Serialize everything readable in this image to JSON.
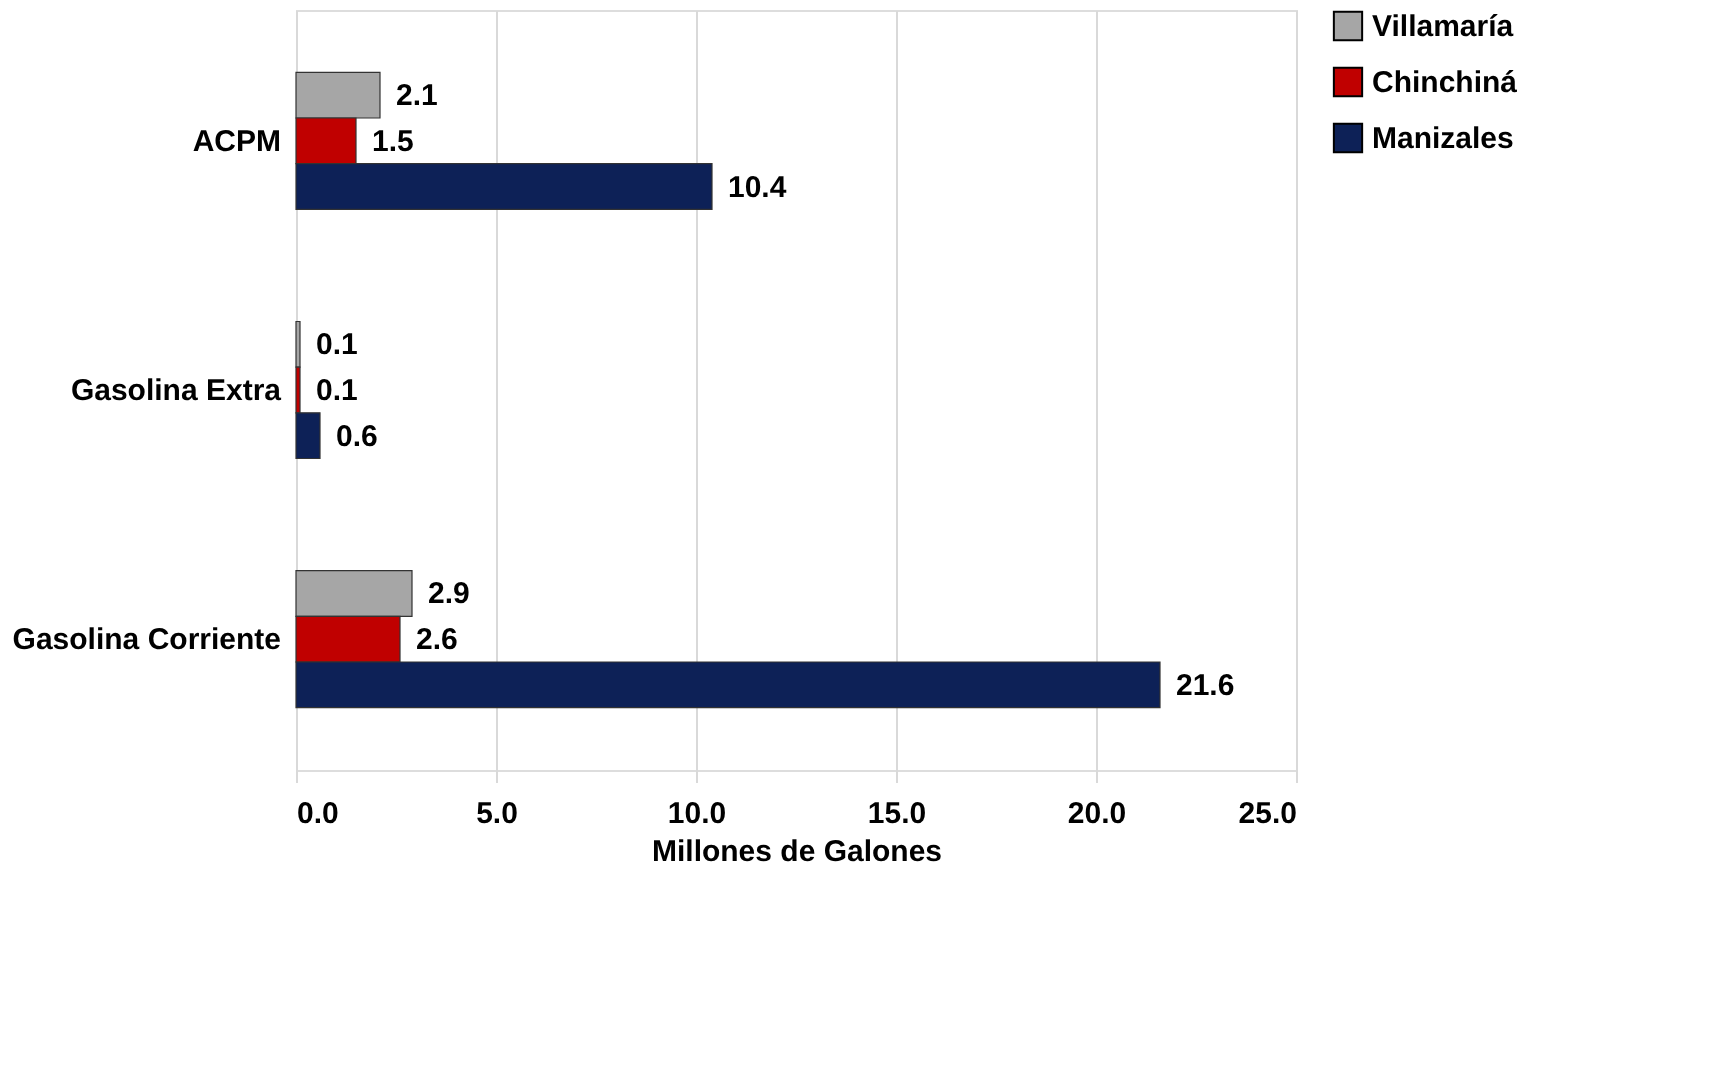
{
  "chart_data": {
    "type": "bar",
    "orientation": "horizontal",
    "xlabel": "Millones de Galones",
    "categories": [
      "ACPM",
      "Gasolina Extra",
      "Gasolina Corriente"
    ],
    "series": [
      {
        "name": "Villamaría",
        "color": "#a6a6a6",
        "values": [
          2.1,
          0.1,
          2.9
        ]
      },
      {
        "name": "Chinchiná",
        "color": "#c00000",
        "values": [
          1.5,
          0.1,
          2.6
        ]
      },
      {
        "name": "Manizales",
        "color": "#0d2157",
        "values": [
          10.4,
          0.6,
          21.6
        ]
      }
    ],
    "xlim": [
      0,
      25
    ],
    "xticks": [
      {
        "value": 0,
        "label": "0.0"
      },
      {
        "value": 5,
        "label": "5.0"
      },
      {
        "value": 10,
        "label": "10.0"
      },
      {
        "value": 15,
        "label": "15.0"
      },
      {
        "value": 20,
        "label": "20.0"
      },
      {
        "value": 25,
        "label": "25.0"
      }
    ],
    "grid": "x",
    "legend": "right",
    "data_labels": true
  }
}
